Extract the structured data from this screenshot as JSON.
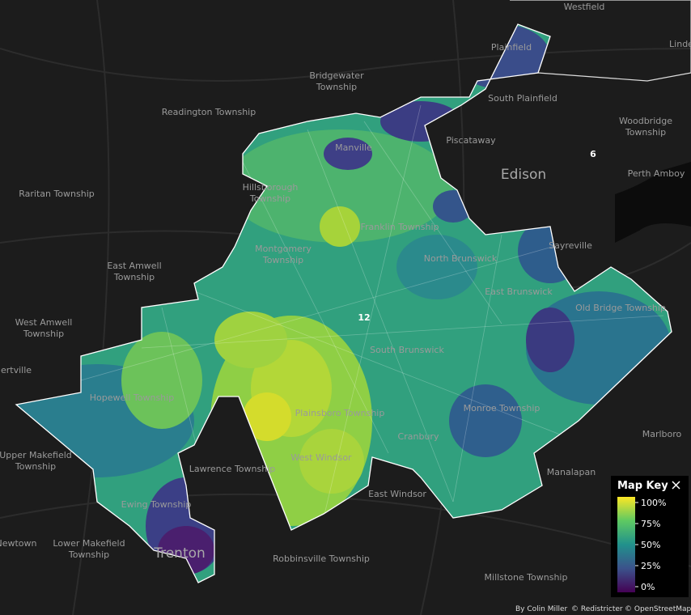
{
  "places": [
    {
      "lines": [
        "Westfield"
      ]
    },
    {
      "lines": [
        "Linde"
      ]
    },
    {
      "lines": [
        "Plainfield"
      ]
    },
    {
      "lines": [
        "Bridgewater",
        "Township"
      ]
    },
    {
      "lines": [
        "South Plainfield"
      ]
    },
    {
      "lines": [
        "Readington Township"
      ]
    },
    {
      "lines": [
        "Woodbridge",
        "Township"
      ]
    },
    {
      "lines": [
        "Piscataway"
      ]
    },
    {
      "lines": [
        "Edison"
      ]
    },
    {
      "lines": [
        "6"
      ]
    },
    {
      "lines": [
        "Perth Amboy"
      ]
    },
    {
      "lines": [
        "Manville"
      ]
    },
    {
      "lines": [
        "Raritan Township"
      ]
    },
    {
      "lines": [
        "Hillsborough",
        "Township"
      ]
    },
    {
      "lines": [
        "Franklin Township"
      ]
    },
    {
      "lines": [
        "Sayreville"
      ]
    },
    {
      "lines": [
        "Montgomery",
        "Township"
      ]
    },
    {
      "lines": [
        "East Amwell",
        "Township"
      ]
    },
    {
      "lines": [
        "North Brunswick"
      ]
    },
    {
      "lines": [
        "East Brunswick"
      ]
    },
    {
      "lines": [
        "Old Bridge Township"
      ]
    },
    {
      "lines": [
        "12"
      ]
    },
    {
      "lines": [
        "West Amwell",
        "Township"
      ]
    },
    {
      "lines": [
        "South Brunswick"
      ]
    },
    {
      "lines": [
        "ertville"
      ]
    },
    {
      "lines": [
        "Hopewell Township"
      ]
    },
    {
      "lines": [
        "Monroe Township"
      ]
    },
    {
      "lines": [
        "Marlboro"
      ]
    },
    {
      "lines": [
        "Plainsboro Township"
      ]
    },
    {
      "lines": [
        "Cranbury"
      ]
    },
    {
      "lines": [
        "Upper Makefield",
        "Township"
      ]
    },
    {
      "lines": [
        "Lawrence Township"
      ]
    },
    {
      "lines": [
        "West Windsor"
      ]
    },
    {
      "lines": [
        "East Windsor"
      ]
    },
    {
      "lines": [
        "Manalapan"
      ]
    },
    {
      "lines": [
        "Ewing Township"
      ]
    },
    {
      "lines": [
        "Newtown"
      ]
    },
    {
      "lines": [
        "Lower Makefield",
        "Township"
      ]
    },
    {
      "lines": [
        "Trenton"
      ]
    },
    {
      "lines": [
        "Robbinsville Township"
      ]
    },
    {
      "lines": [
        "Millstone Township"
      ]
    }
  ],
  "legend": {
    "title": "Map Key",
    "ticks": [
      {
        "value": 100,
        "label": "100%"
      },
      {
        "value": 75,
        "label": "75%"
      },
      {
        "value": 50,
        "label": "50%"
      },
      {
        "value": 25,
        "label": "25%"
      },
      {
        "value": 0,
        "label": "0%"
      }
    ]
  },
  "attribution": [
    "By Colin Miller",
    "© Redistricter",
    "© OpenStreetMap"
  ]
}
